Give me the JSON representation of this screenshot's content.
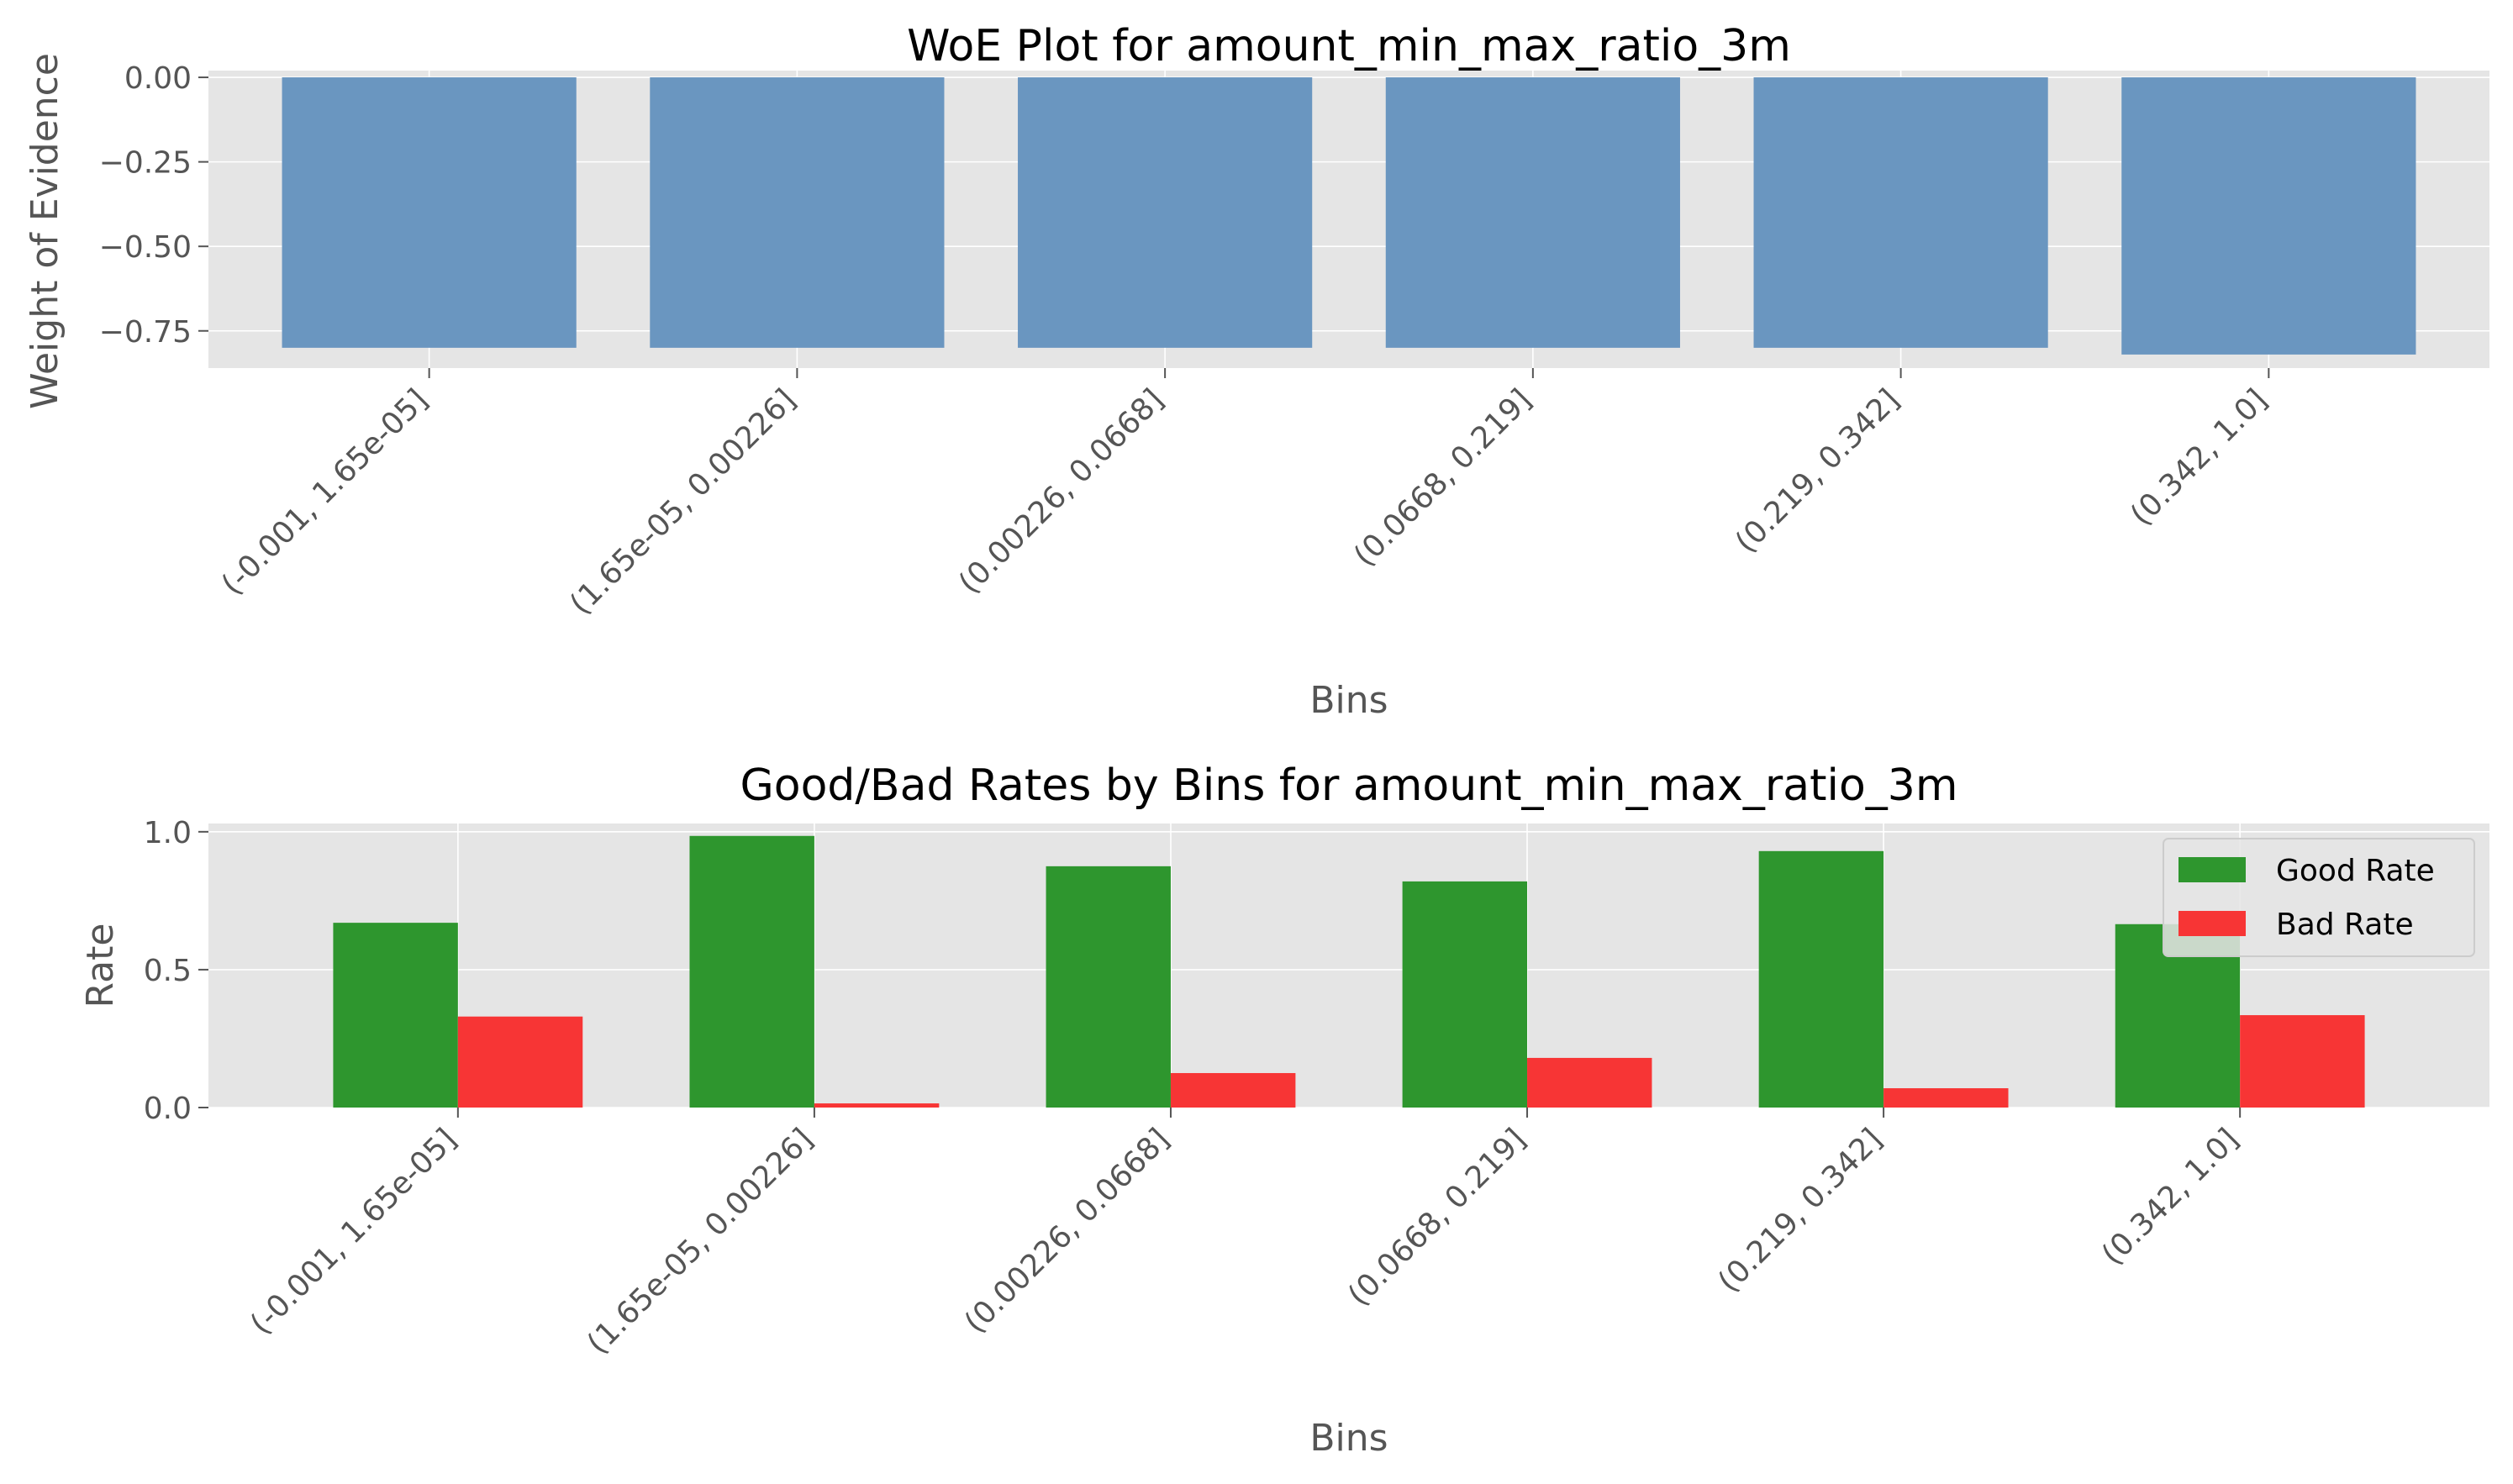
{
  "chart_data": [
    {
      "type": "bar",
      "title": "WoE Plot for amount_min_max_ratio_3m",
      "xlabel": "Bins",
      "ylabel": "Weight of Evidence",
      "categories": [
        "(-0.001, 1.65e-05]",
        "(1.65e-05, 0.00226]",
        "(0.00226, 0.0668]",
        "(0.0668, 0.219]",
        "(0.219, 0.342]",
        "(0.342, 1.0]"
      ],
      "values": [
        -0.8,
        -0.8,
        -0.8,
        -0.8,
        -0.8,
        -0.82
      ],
      "ylim": [
        -0.86,
        0.02
      ],
      "yticks": [
        0.0,
        -0.25,
        -0.5,
        -0.75
      ],
      "ytick_labels": [
        "0.00",
        "−0.25",
        "−0.50",
        "−0.75"
      ],
      "grid": true,
      "color": "#6a96c0"
    },
    {
      "type": "bar",
      "title": "Good/Bad Rates by Bins for amount_min_max_ratio_3m",
      "xlabel": "Bins",
      "ylabel": "Rate",
      "categories": [
        "(-0.001, 1.65e-05]",
        "(1.65e-05, 0.00226]",
        "(0.00226, 0.0668]",
        "(0.0668, 0.219]",
        "(0.219, 0.342]",
        "(0.342, 1.0]"
      ],
      "series": [
        {
          "name": "Good Rate",
          "values": [
            0.67,
            0.985,
            0.875,
            0.82,
            0.93,
            0.665
          ],
          "color": "#2e962e"
        },
        {
          "name": "Bad Rate",
          "values": [
            0.33,
            0.015,
            0.125,
            0.18,
            0.07,
            0.335
          ],
          "color": "#f73535"
        }
      ],
      "ylim": [
        0,
        1.03
      ],
      "yticks": [
        0.0,
        0.5,
        1.0
      ],
      "ytick_labels": [
        "0.0",
        "0.5",
        "1.0"
      ],
      "grid": true,
      "legend_position": "top-right"
    }
  ]
}
